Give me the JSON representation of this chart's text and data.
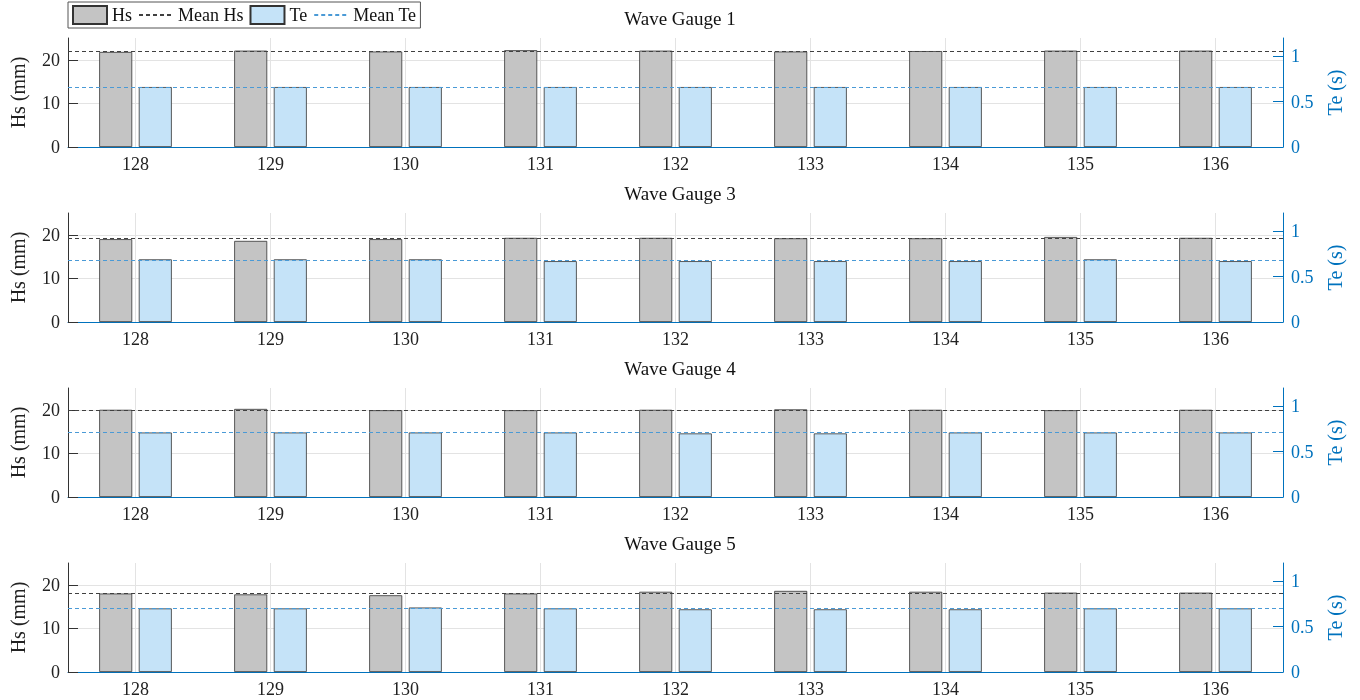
{
  "chart_data": [
    {
      "type": "bar",
      "title": "Wave Gauge 1",
      "categories": [
        "128",
        "129",
        "130",
        "131",
        "132",
        "133",
        "134",
        "135",
        "136"
      ],
      "ylabel": "Hs (mm)",
      "y2label": "Te (s)",
      "ylim": [
        0,
        25
      ],
      "yticks": [
        0,
        10,
        20
      ],
      "y2lim": [
        0,
        1.2
      ],
      "y2ticks": [
        0,
        0.5,
        1
      ],
      "grid": true,
      "legend": "top left",
      "series": [
        {
          "name": "Hs",
          "color": "#c4c4c4",
          "values": [
            21.8,
            22.1,
            21.9,
            22.2,
            22.1,
            21.9,
            22.0,
            22.1,
            22.1
          ]
        },
        {
          "name": "Te",
          "color": "#c5e3f8",
          "axis": "y2",
          "values": [
            0.66,
            0.66,
            0.66,
            0.66,
            0.66,
            0.66,
            0.66,
            0.66,
            0.66
          ]
        }
      ],
      "ref_lines": [
        {
          "axis": "y",
          "value": 22.0,
          "label": "Mean Hs",
          "color": "#404040",
          "line_style": "dashed"
        },
        {
          "axis": "y2",
          "value": 0.66,
          "label": "Mean Te",
          "color": "#4a9ad6",
          "line_style": "dashed"
        }
      ]
    },
    {
      "type": "bar",
      "title": "Wave Gauge 3",
      "categories": [
        "128",
        "129",
        "130",
        "131",
        "132",
        "133",
        "134",
        "135",
        "136"
      ],
      "ylabel": "Hs (mm)",
      "y2label": "Te (s)",
      "ylim": [
        0,
        25
      ],
      "yticks": [
        0,
        10,
        20
      ],
      "y2lim": [
        0,
        1.2
      ],
      "y2ticks": [
        0,
        0.5,
        1
      ],
      "grid": true,
      "series": [
        {
          "color": "#c4c4c4",
          "values": [
            19.0,
            18.6,
            19.0,
            19.3,
            19.3,
            19.2,
            19.2,
            19.5,
            19.3
          ]
        },
        {
          "color": "#c5e3f8",
          "axis": "y2",
          "values": [
            0.69,
            0.69,
            0.69,
            0.67,
            0.67,
            0.67,
            0.67,
            0.69,
            0.67
          ]
        }
      ],
      "ref_lines": [
        {
          "axis": "y",
          "value": 19.2,
          "color": "#404040",
          "line_style": "dashed"
        },
        {
          "axis": "y2",
          "value": 0.68,
          "color": "#4a9ad6",
          "line_style": "dashed"
        }
      ]
    },
    {
      "type": "bar",
      "title": "Wave Gauge 4",
      "categories": [
        "128",
        "129",
        "130",
        "131",
        "132",
        "133",
        "134",
        "135",
        "136"
      ],
      "ylabel": "Hs (mm)",
      "y2label": "Te (s)",
      "ylim": [
        0,
        25
      ],
      "yticks": [
        0,
        10,
        20
      ],
      "y2lim": [
        0,
        1.2
      ],
      "y2ticks": [
        0,
        0.5,
        1
      ],
      "grid": true,
      "series": [
        {
          "color": "#c4c4c4",
          "values": [
            20.0,
            20.2,
            19.9,
            19.9,
            20.0,
            20.1,
            20.0,
            19.9,
            20.0
          ]
        },
        {
          "color": "#c5e3f8",
          "axis": "y2",
          "values": [
            0.71,
            0.71,
            0.71,
            0.71,
            0.7,
            0.7,
            0.71,
            0.71,
            0.71
          ]
        }
      ],
      "ref_lines": [
        {
          "axis": "y",
          "value": 20.0,
          "color": "#404040",
          "line_style": "dashed"
        },
        {
          "axis": "y2",
          "value": 0.71,
          "color": "#4a9ad6",
          "line_style": "dashed"
        }
      ]
    },
    {
      "type": "bar",
      "title": "Wave Gauge 5",
      "categories": [
        "128",
        "129",
        "130",
        "131",
        "132",
        "133",
        "134",
        "135",
        "136"
      ],
      "ylabel": "Hs (mm)",
      "y2label": "Te (s)",
      "ylim": [
        0,
        25
      ],
      "yticks": [
        0,
        10,
        20
      ],
      "y2lim": [
        0,
        1.2
      ],
      "y2ticks": [
        0,
        0.5,
        1
      ],
      "grid": true,
      "series": [
        {
          "color": "#c4c4c4",
          "values": [
            18.0,
            17.8,
            17.6,
            18.0,
            18.4,
            18.6,
            18.4,
            18.2,
            18.2
          ]
        },
        {
          "color": "#c5e3f8",
          "axis": "y2",
          "values": [
            0.7,
            0.7,
            0.71,
            0.7,
            0.69,
            0.69,
            0.69,
            0.7,
            0.7
          ]
        }
      ],
      "ref_lines": [
        {
          "axis": "y",
          "value": 18.1,
          "color": "#404040",
          "line_style": "dashed"
        },
        {
          "axis": "y2",
          "value": 0.7,
          "color": "#4a9ad6",
          "line_style": "dashed"
        }
      ]
    }
  ]
}
